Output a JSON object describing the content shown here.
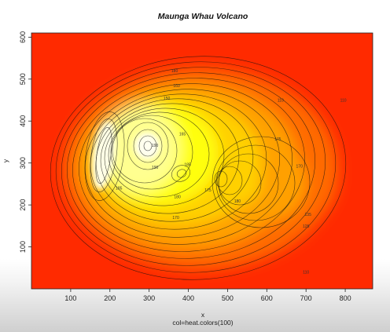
{
  "chart_data": {
    "type": "heatmap",
    "title": "Maunga Whau Volcano",
    "xlabel": "x",
    "ylabel": "y",
    "sub": "col=heat.colors(100)",
    "xlim": [
      0,
      870
    ],
    "ylim": [
      0,
      610
    ],
    "x_ticks": [
      100,
      200,
      300,
      400,
      500,
      600,
      700,
      800
    ],
    "y_ticks": [
      100,
      200,
      300,
      400,
      500,
      600
    ],
    "z_range": [
      94,
      195
    ],
    "colormap": [
      "#FF0000",
      "#FF3300",
      "#FF6600",
      "#FF9900",
      "#FFCC00",
      "#FFFF00",
      "#FFFF80",
      "#FFFFFF"
    ],
    "contour_interval": 5,
    "contour_labels": [
      {
        "text": "180",
        "x": 365,
        "y": 520
      },
      {
        "text": "160",
        "x": 370,
        "y": 485
      },
      {
        "text": "150",
        "x": 345,
        "y": 455
      },
      {
        "text": "110",
        "x": 635,
        "y": 450
      },
      {
        "text": "110",
        "x": 795,
        "y": 450
      },
      {
        "text": "165",
        "x": 385,
        "y": 370
      },
      {
        "text": "190",
        "x": 315,
        "y": 342
      },
      {
        "text": "185",
        "x": 398,
        "y": 297
      },
      {
        "text": "190",
        "x": 315,
        "y": 290
      },
      {
        "text": "175",
        "x": 628,
        "y": 357
      },
      {
        "text": "170",
        "x": 683,
        "y": 293
      },
      {
        "text": "185",
        "x": 223,
        "y": 240
      },
      {
        "text": "175",
        "x": 450,
        "y": 236
      },
      {
        "text": "180",
        "x": 372,
        "y": 220
      },
      {
        "text": "180",
        "x": 525,
        "y": 210
      },
      {
        "text": "170",
        "x": 368,
        "y": 170
      },
      {
        "text": "135",
        "x": 705,
        "y": 178
      },
      {
        "text": "125",
        "x": 700,
        "y": 150
      },
      {
        "text": "110",
        "x": 700,
        "y": 40
      }
    ]
  }
}
